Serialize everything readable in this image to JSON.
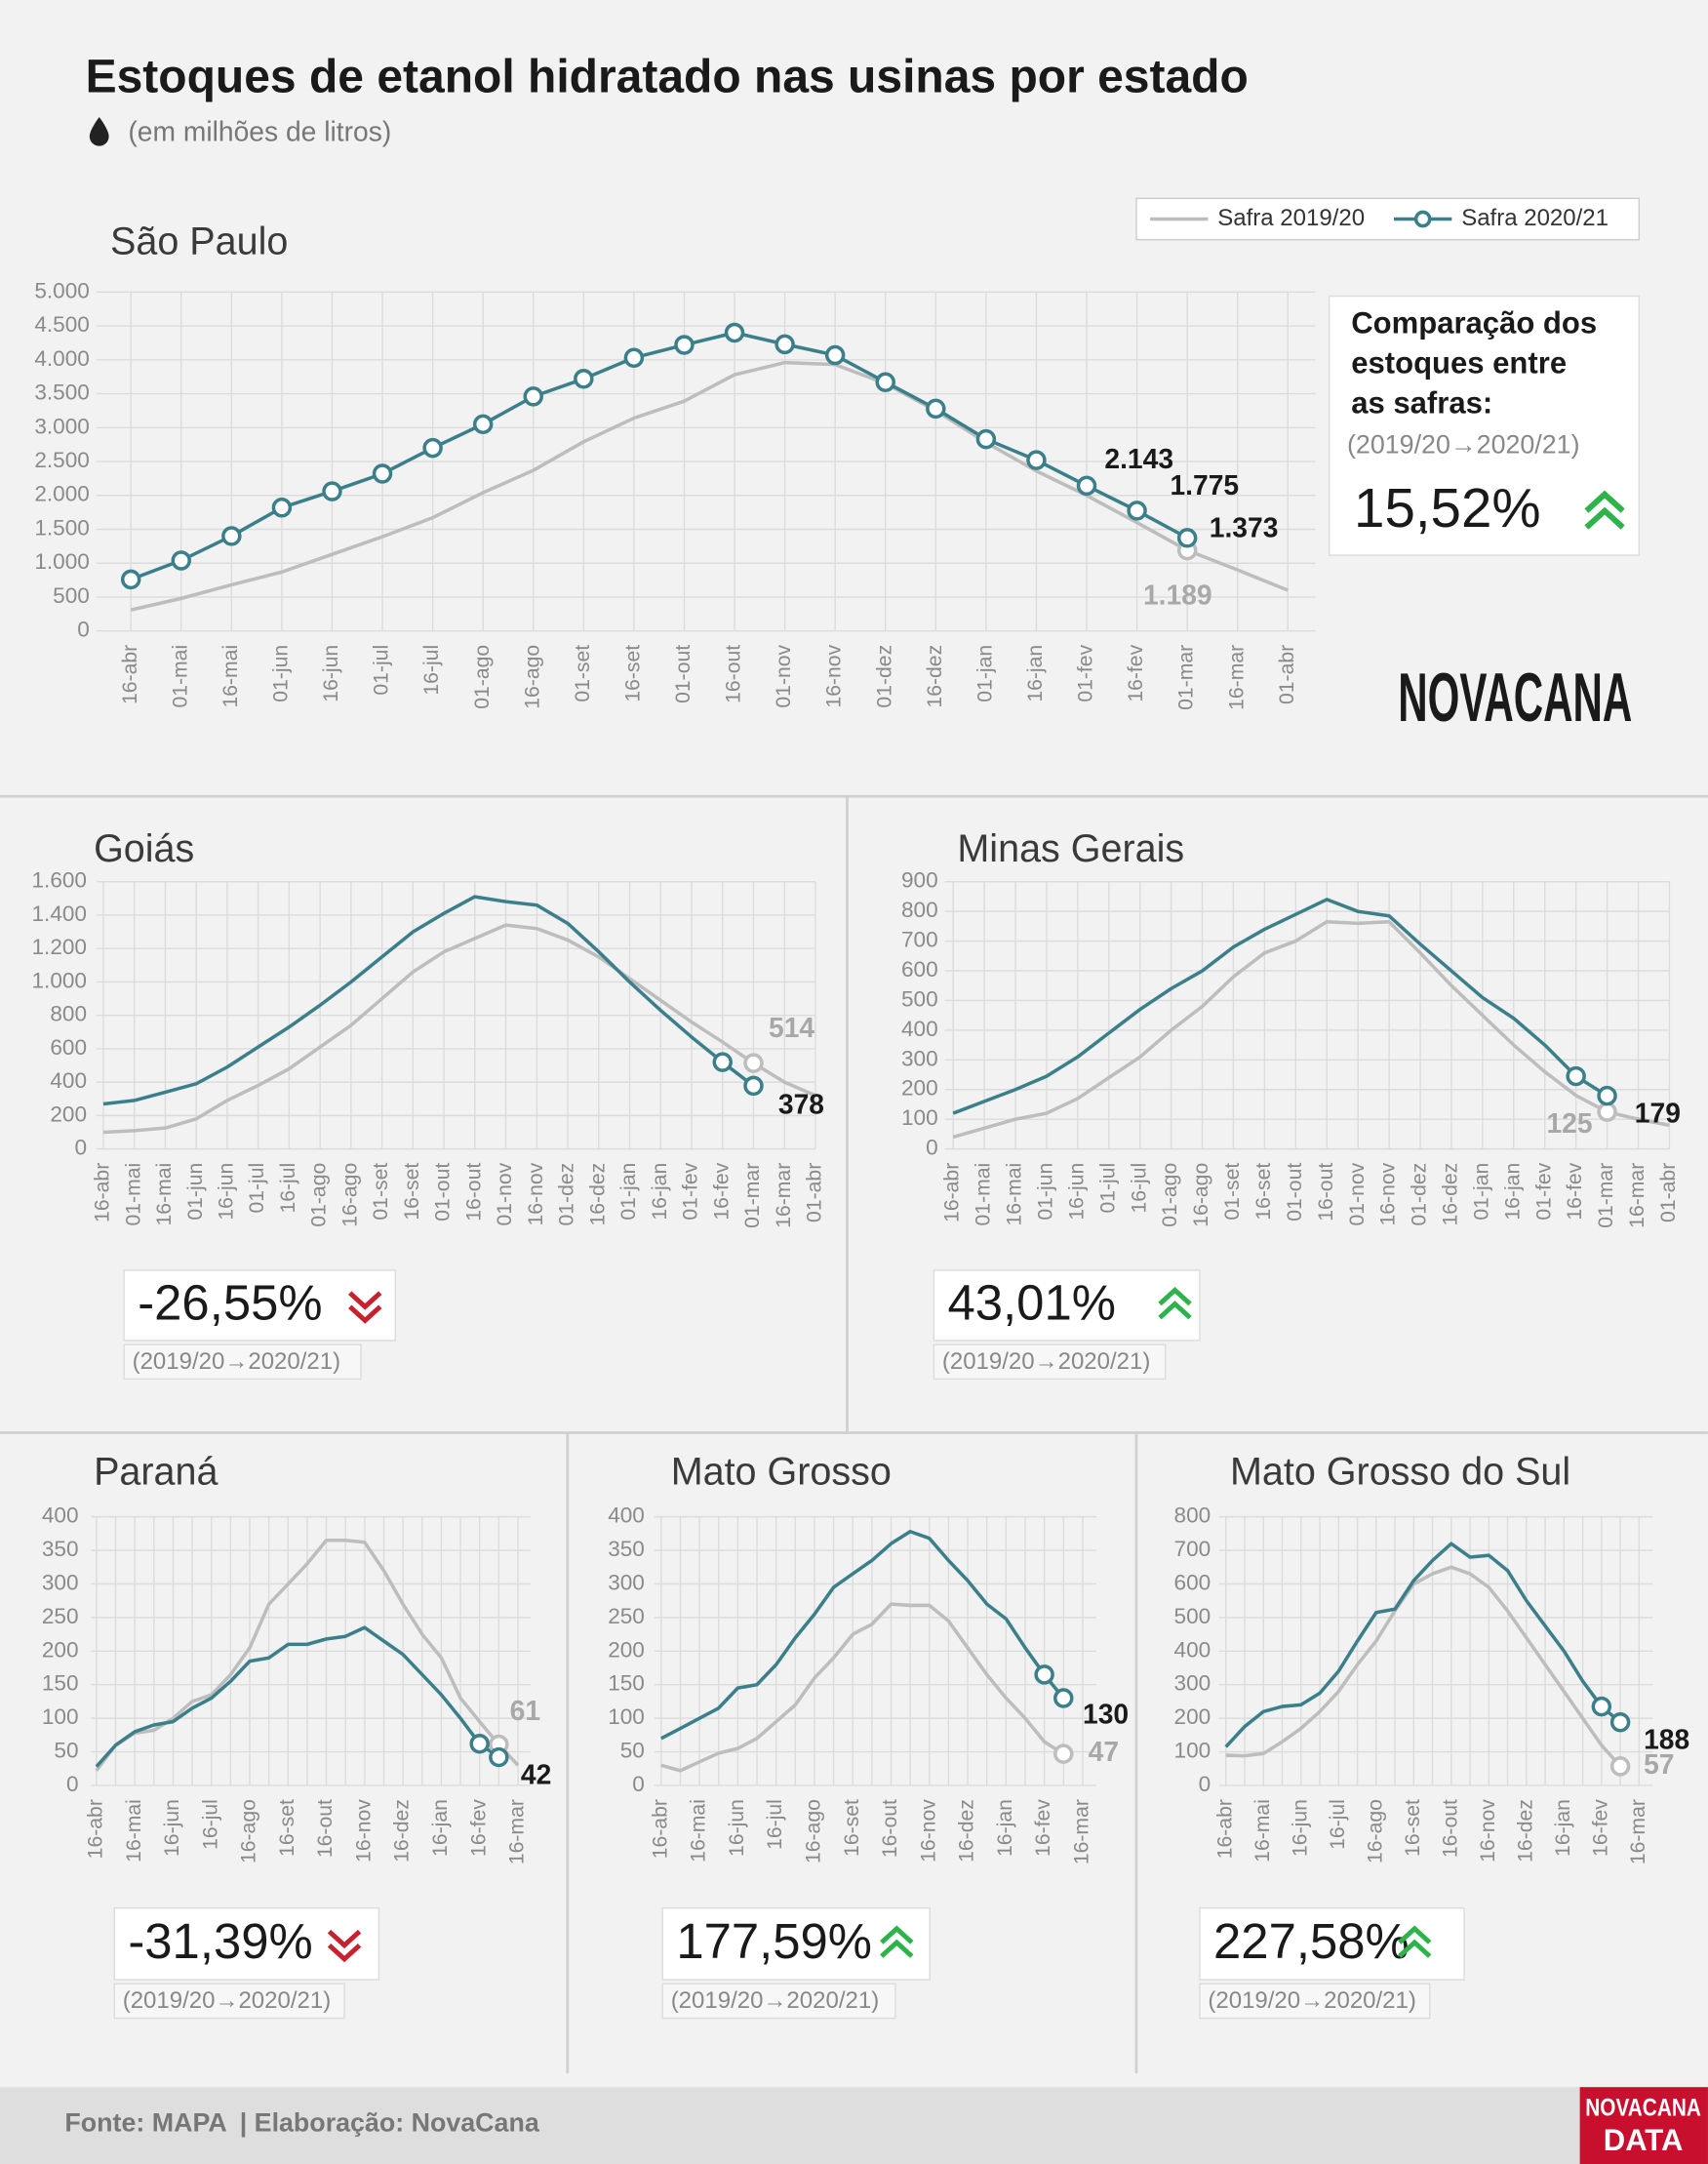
{
  "title": "Estoques de etanol hidratado nas usinas por estado",
  "subtitle": "(em milhões de litros)",
  "logo": "NOVACANA",
  "footer": {
    "source": "Fonte: MAPA",
    "credit": "| Elaboração: NovaCana",
    "logo": [
      "NOVACANA",
      "DATA"
    ]
  },
  "chart_data": [
    {
      "type": "line",
      "title": "São Paulo",
      "categories": [
        "16-abr",
        "01-mai",
        "16-mai",
        "01-jun",
        "16-jun",
        "01-jul",
        "16-jul",
        "01-ago",
        "16-ago",
        "01-set",
        "16-set",
        "01-out",
        "16-out",
        "01-nov",
        "16-nov",
        "01-dez",
        "16-dez",
        "01-jan",
        "16-jan",
        "01-fev",
        "16-fev",
        "01-mar",
        "16-mar",
        "01-abr"
      ],
      "series": [
        {
          "name": "Safra 2019/20",
          "color": "#bdbdbd",
          "values": [
            310,
            480,
            680,
            870,
            1130,
            1390,
            1670,
            2040,
            2370,
            2790,
            3140,
            3390,
            3780,
            3960,
            3930,
            3650,
            3250,
            2780,
            2360,
            2000,
            1600,
            1189,
            900,
            600
          ],
          "value_labels": [
            null,
            null,
            null,
            null,
            null,
            null,
            null,
            null,
            null,
            null,
            null,
            null,
            null,
            null,
            null,
            null,
            null,
            null,
            null,
            null,
            null,
            "1.189",
            null,
            null
          ],
          "markers": [
            21
          ]
        },
        {
          "name": "Safra 2020/21",
          "color": "#3b7f8b",
          "values": [
            760,
            1040,
            1400,
            1820,
            2060,
            2320,
            2700,
            3050,
            3460,
            3720,
            4030,
            4220,
            4400,
            4230,
            4070,
            3670,
            3280,
            2830,
            2520,
            2143,
            1775,
            1373,
            null,
            null
          ],
          "value_labels": [
            null,
            null,
            null,
            null,
            null,
            null,
            null,
            null,
            null,
            null,
            null,
            null,
            null,
            null,
            null,
            null,
            null,
            null,
            null,
            "2.143",
            "1.775",
            "1.373",
            null,
            null
          ],
          "markers": "all"
        }
      ],
      "ylim": [
        0,
        5000
      ],
      "yticks": [
        0,
        500,
        {
          "value": 1000,
          "label": "1.000"
        },
        {
          "value": 1500,
          "label": "1.500"
        },
        {
          "value": 2000,
          "label": "2.000"
        },
        {
          "value": 2500,
          "label": "2.500"
        },
        {
          "value": 3000,
          "label": "3.000"
        },
        {
          "value": 3500,
          "label": "3.500"
        },
        {
          "value": 4000,
          "label": "4.000"
        },
        {
          "value": 4500,
          "label": "4.500"
        },
        {
          "value": 5000,
          "label": "5.000"
        }
      ],
      "grid": true,
      "comparison": {
        "heading": [
          "Comparação dos",
          "estoques entre",
          "as safras:"
        ],
        "period": "(2019/20→2020/21)",
        "change": {
          "value": 15.52,
          "label": "15,52%"
        }
      }
    },
    {
      "type": "line",
      "title": "Goiás",
      "categories": [
        "16-abr",
        "01-mai",
        "16-mai",
        "01-jun",
        "16-jun",
        "01-jul",
        "16-jul",
        "01-ago",
        "16-ago",
        "01-set",
        "16-set",
        "01-out",
        "16-out",
        "01-nov",
        "16-nov",
        "01-dez",
        "16-dez",
        "01-jan",
        "16-jan",
        "01-fev",
        "16-fev",
        "01-mar",
        "16-mar",
        "01-abr"
      ],
      "series": [
        {
          "color": "#bdbdbd",
          "values": [
            100,
            110,
            125,
            180,
            290,
            380,
            480,
            610,
            740,
            900,
            1060,
            1180,
            1260,
            1340,
            1320,
            1250,
            1150,
            1020,
            890,
            760,
            640,
            514,
            400,
            320
          ],
          "value_labels": [
            null,
            null,
            null,
            null,
            null,
            null,
            null,
            null,
            null,
            null,
            null,
            null,
            null,
            null,
            null,
            null,
            null,
            null,
            null,
            null,
            null,
            "514",
            null,
            null
          ],
          "markers": [
            21
          ]
        },
        {
          "color": "#3b7f8b",
          "values": [
            270,
            290,
            340,
            390,
            490,
            610,
            730,
            860,
            1000,
            1150,
            1300,
            1410,
            1510,
            1480,
            1460,
            1350,
            1180,
            1000,
            830,
            670,
            520,
            378,
            null,
            null
          ],
          "value_labels": [
            null,
            null,
            null,
            null,
            null,
            null,
            null,
            null,
            null,
            null,
            null,
            null,
            null,
            null,
            null,
            null,
            null,
            null,
            null,
            null,
            null,
            "378",
            null,
            null
          ],
          "markers": [
            20,
            21
          ]
        }
      ],
      "ylim": [
        0,
        1600
      ],
      "yticks": [
        0,
        200,
        400,
        600,
        800,
        {
          "value": 1000,
          "label": "1.000"
        },
        {
          "value": 1200,
          "label": "1.200"
        },
        {
          "value": 1400,
          "label": "1.400"
        },
        {
          "value": 1600,
          "label": "1.600"
        }
      ],
      "grid": true,
      "comparison": {
        "period": "(2019/20→2020/21)",
        "change": {
          "value": -26.55,
          "label": "-26,55%"
        }
      }
    },
    {
      "type": "line",
      "title": "Minas Gerais",
      "categories": [
        "16-abr",
        "01-mai",
        "16-mai",
        "01-jun",
        "16-jun",
        "01-jul",
        "16-jul",
        "01-ago",
        "16-ago",
        "01-set",
        "16-set",
        "01-out",
        "16-out",
        "01-nov",
        "16-nov",
        "01-dez",
        "16-dez",
        "01-jan",
        "16-jan",
        "01-fev",
        "16-fev",
        "01-mar",
        "16-mar",
        "01-abr"
      ],
      "series": [
        {
          "color": "#bdbdbd",
          "values": [
            40,
            70,
            100,
            120,
            170,
            240,
            310,
            400,
            480,
            580,
            660,
            700,
            765,
            760,
            765,
            660,
            550,
            450,
            350,
            260,
            180,
            125,
            100,
            80
          ],
          "value_labels": [
            null,
            null,
            null,
            null,
            null,
            null,
            null,
            null,
            null,
            null,
            null,
            null,
            null,
            null,
            null,
            null,
            null,
            null,
            null,
            null,
            null,
            "125",
            null,
            null
          ],
          "markers": [
            21
          ]
        },
        {
          "color": "#3b7f8b",
          "values": [
            120,
            160,
            200,
            245,
            310,
            390,
            470,
            540,
            600,
            680,
            740,
            790,
            840,
            800,
            785,
            690,
            600,
            510,
            440,
            350,
            245,
            179,
            null,
            null
          ],
          "value_labels": [
            null,
            null,
            null,
            null,
            null,
            null,
            null,
            null,
            null,
            null,
            null,
            null,
            null,
            null,
            null,
            null,
            null,
            null,
            null,
            null,
            null,
            "179",
            null,
            null
          ],
          "markers": [
            20,
            21
          ]
        }
      ],
      "ylim": [
        0,
        900
      ],
      "yticks": [
        0,
        100,
        200,
        300,
        400,
        500,
        600,
        700,
        800,
        900
      ],
      "grid": true,
      "comparison": {
        "period": "(2019/20→2020/21)",
        "change": {
          "value": 43.01,
          "label": "43,01%"
        }
      }
    },
    {
      "type": "line",
      "title": "Paraná",
      "categories": [
        "16-abr",
        null,
        "16-mai",
        null,
        "16-jun",
        null,
        "16-jul",
        null,
        "16-ago",
        null,
        "16-set",
        null,
        "16-out",
        null,
        "16-nov",
        null,
        "16-dez",
        null,
        "16-jan",
        null,
        "16-fev",
        null,
        "16-mar"
      ],
      "series": [
        {
          "color": "#bdbdbd",
          "values": [
            22,
            60,
            78,
            82,
            100,
            125,
            135,
            165,
            205,
            270,
            300,
            330,
            365,
            365,
            362,
            320,
            270,
            225,
            190,
            130,
            95,
            61,
            30
          ],
          "value_labels": [
            null,
            null,
            null,
            null,
            null,
            null,
            null,
            null,
            null,
            null,
            null,
            null,
            null,
            null,
            null,
            null,
            null,
            null,
            null,
            null,
            null,
            "61",
            null
          ],
          "markers": [
            21
          ]
        },
        {
          "color": "#3b7f8b",
          "values": [
            28,
            60,
            80,
            90,
            95,
            115,
            130,
            155,
            185,
            190,
            210,
            210,
            218,
            222,
            235,
            215,
            195,
            165,
            135,
            100,
            62,
            42,
            null
          ],
          "value_labels": [
            null,
            null,
            null,
            null,
            null,
            null,
            null,
            null,
            null,
            null,
            null,
            null,
            null,
            null,
            null,
            null,
            null,
            null,
            null,
            null,
            null,
            "42",
            null
          ],
          "markers": [
            20,
            21
          ]
        }
      ],
      "ylim": [
        0,
        400
      ],
      "yticks": [
        0,
        50,
        100,
        150,
        200,
        250,
        300,
        350,
        400
      ],
      "grid": true,
      "comparison": {
        "period": "(2019/20→2020/21)",
        "change": {
          "value": -31.39,
          "label": "-31,39%"
        }
      }
    },
    {
      "type": "line",
      "title": "Mato Grosso",
      "categories": [
        "16-abr",
        null,
        "16-mai",
        null,
        "16-jun",
        null,
        "16-jul",
        null,
        "16-ago",
        null,
        "16-set",
        null,
        "16-out",
        null,
        "16-nov",
        null,
        "16-dez",
        null,
        "16-jan",
        null,
        "16-fev",
        null,
        "16-mar"
      ],
      "series": [
        {
          "color": "#bdbdbd",
          "values": [
            30,
            22,
            35,
            48,
            55,
            70,
            95,
            120,
            160,
            190,
            225,
            240,
            270,
            268,
            268,
            245,
            205,
            165,
            130,
            100,
            65,
            47,
            null
          ],
          "value_labels": [
            null,
            null,
            null,
            null,
            null,
            null,
            null,
            null,
            null,
            null,
            null,
            null,
            null,
            null,
            null,
            null,
            null,
            null,
            null,
            null,
            null,
            "47",
            null
          ],
          "markers": [
            21
          ]
        },
        {
          "color": "#3b7f8b",
          "values": [
            70,
            85,
            100,
            115,
            145,
            150,
            180,
            220,
            255,
            295,
            315,
            335,
            360,
            378,
            368,
            335,
            305,
            270,
            248,
            205,
            165,
            130,
            null
          ],
          "value_labels": [
            null,
            null,
            null,
            null,
            null,
            null,
            null,
            null,
            null,
            null,
            null,
            null,
            null,
            null,
            null,
            null,
            null,
            null,
            null,
            null,
            null,
            "130",
            null
          ],
          "markers": [
            20,
            21
          ]
        }
      ],
      "ylim": [
        0,
        400
      ],
      "yticks": [
        0,
        50,
        100,
        150,
        200,
        250,
        300,
        350,
        400
      ],
      "grid": true,
      "comparison": {
        "period": "(2019/20→2020/21)",
        "change": {
          "value": 177.59,
          "label": "177,59%"
        }
      }
    },
    {
      "type": "line",
      "title": "Mato Grosso do Sul",
      "categories": [
        "16-abr",
        null,
        "16-mai",
        null,
        "16-jun",
        null,
        "16-jul",
        null,
        "16-ago",
        null,
        "16-set",
        null,
        "16-out",
        null,
        "16-nov",
        null,
        "16-dez",
        null,
        "16-jan",
        null,
        "16-fev",
        null,
        "16-mar"
      ],
      "series": [
        {
          "color": "#bdbdbd",
          "values": [
            90,
            88,
            95,
            130,
            170,
            220,
            280,
            360,
            430,
            520,
            600,
            630,
            650,
            630,
            590,
            520,
            440,
            360,
            280,
            200,
            120,
            57,
            null
          ],
          "value_labels": [
            null,
            null,
            null,
            null,
            null,
            null,
            null,
            null,
            null,
            null,
            null,
            null,
            null,
            null,
            null,
            null,
            null,
            null,
            null,
            null,
            null,
            "57",
            null
          ],
          "markers": [
            21
          ]
        },
        {
          "color": "#3b7f8b",
          "values": [
            115,
            175,
            220,
            235,
            240,
            275,
            340,
            430,
            515,
            525,
            610,
            670,
            720,
            680,
            685,
            640,
            550,
            475,
            400,
            310,
            235,
            188,
            null
          ],
          "value_labels": [
            null,
            null,
            null,
            null,
            null,
            null,
            null,
            null,
            null,
            null,
            null,
            null,
            null,
            null,
            null,
            null,
            null,
            null,
            null,
            null,
            null,
            "188",
            null
          ],
          "markers": [
            20,
            21
          ]
        }
      ],
      "ylim": [
        0,
        800
      ],
      "yticks": [
        0,
        100,
        200,
        300,
        400,
        500,
        600,
        700,
        800
      ],
      "grid": true,
      "comparison": {
        "period": "(2019/20→2020/21)",
        "change": {
          "value": 227.58,
          "label": "227,58%"
        }
      }
    }
  ]
}
